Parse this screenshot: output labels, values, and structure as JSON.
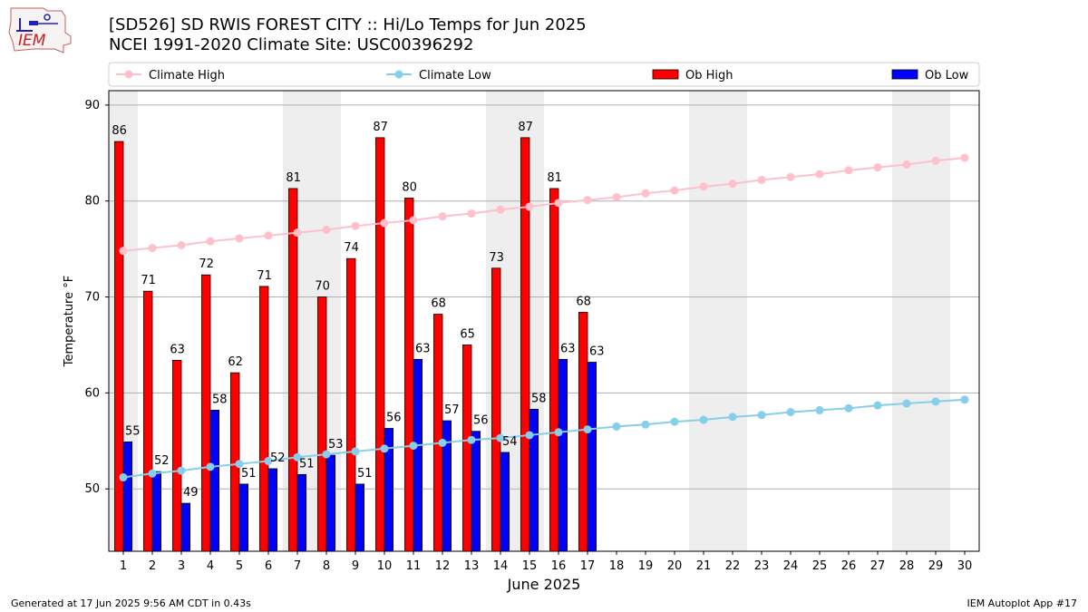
{
  "header": {
    "logo_text": "IEM",
    "title_line1": "[SD526] SD RWIS FOREST CITY :: Hi/Lo Temps for Jun 2025",
    "title_line2": "NCEI 1991-2020 Climate Site: USC00396292"
  },
  "footer": {
    "generated": "Generated at 17 Jun 2025 9:56 AM CDT in 0.43s",
    "app": "IEM Autoplot App #17"
  },
  "colors": {
    "ob_high": "#ff0000",
    "ob_low": "#0000ff",
    "climate_high": "#ffc0cb",
    "climate_low": "#87ceeb",
    "weekend_shade": "#eeeeee",
    "grid": "#b0b0b0"
  },
  "chart_data": {
    "type": "bar",
    "title": "[SD526] SD RWIS FOREST CITY :: Hi/Lo Temps for Jun 2025",
    "subtitle": "NCEI 1991-2020 Climate Site: USC00396292",
    "xlabel": "June 2025",
    "ylabel": "Temperature °F",
    "ylim": [
      43.5,
      91.5
    ],
    "yticks": [
      50,
      60,
      70,
      80,
      90
    ],
    "days": [
      1,
      2,
      3,
      4,
      5,
      6,
      7,
      8,
      9,
      10,
      11,
      12,
      13,
      14,
      15,
      16,
      17,
      18,
      19,
      20,
      21,
      22,
      23,
      24,
      25,
      26,
      27,
      28,
      29,
      30
    ],
    "shaded_days": [
      1,
      7,
      8,
      14,
      15,
      21,
      22,
      28,
      29
    ],
    "legend": [
      {
        "key": "climate_high",
        "label": "Climate High",
        "kind": "line"
      },
      {
        "key": "climate_low",
        "label": "Climate Low",
        "kind": "line"
      },
      {
        "key": "ob_high",
        "label": "Ob High",
        "kind": "bar"
      },
      {
        "key": "ob_low",
        "label": "Ob Low",
        "kind": "bar"
      }
    ],
    "series": [
      {
        "name": "Ob High",
        "key": "ob_high",
        "kind": "bar",
        "values": [
          86.2,
          70.6,
          63.4,
          72.3,
          62.1,
          71.1,
          81.3,
          70.0,
          74.0,
          86.6,
          80.3,
          68.2,
          65.0,
          73.0,
          86.6,
          81.3,
          68.4
        ]
      },
      {
        "name": "Ob Low",
        "key": "ob_low",
        "kind": "bar",
        "values": [
          54.9,
          51.8,
          48.5,
          58.2,
          50.5,
          52.1,
          51.5,
          53.5,
          50.5,
          56.3,
          63.5,
          57.1,
          56.0,
          53.8,
          58.3,
          63.5,
          63.2
        ]
      },
      {
        "name": "Ob High labels",
        "key": "ob_high_labels",
        "kind": "labels",
        "values": [
          "86",
          "71",
          "63",
          "72",
          "62",
          "71",
          "81",
          "70",
          "74",
          "87",
          "80",
          "68",
          "65",
          "73",
          "87",
          "81",
          "68"
        ]
      },
      {
        "name": "Ob Low labels",
        "key": "ob_low_labels",
        "kind": "labels",
        "values": [
          "55",
          "52",
          "49",
          "58",
          "51",
          "52",
          "51",
          "53",
          "51",
          "56",
          "63",
          "57",
          "56",
          "54",
          "58",
          "63",
          "63"
        ]
      },
      {
        "name": "Climate High",
        "key": "climate_high",
        "kind": "line",
        "values": [
          74.8,
          75.1,
          75.4,
          75.8,
          76.1,
          76.4,
          76.7,
          77.0,
          77.4,
          77.7,
          78.0,
          78.4,
          78.7,
          79.1,
          79.4,
          79.8,
          80.1,
          80.4,
          80.8,
          81.1,
          81.5,
          81.8,
          82.2,
          82.5,
          82.8,
          83.2,
          83.5,
          83.8,
          84.2,
          84.5
        ]
      },
      {
        "name": "Climate Low",
        "key": "climate_low",
        "kind": "line",
        "values": [
          51.2,
          51.6,
          51.9,
          52.3,
          52.6,
          52.9,
          53.3,
          53.6,
          53.9,
          54.2,
          54.5,
          54.8,
          55.1,
          55.3,
          55.6,
          55.9,
          56.2,
          56.5,
          56.7,
          57.0,
          57.2,
          57.5,
          57.7,
          58.0,
          58.2,
          58.4,
          58.7,
          58.9,
          59.1,
          59.3
        ]
      }
    ]
  }
}
